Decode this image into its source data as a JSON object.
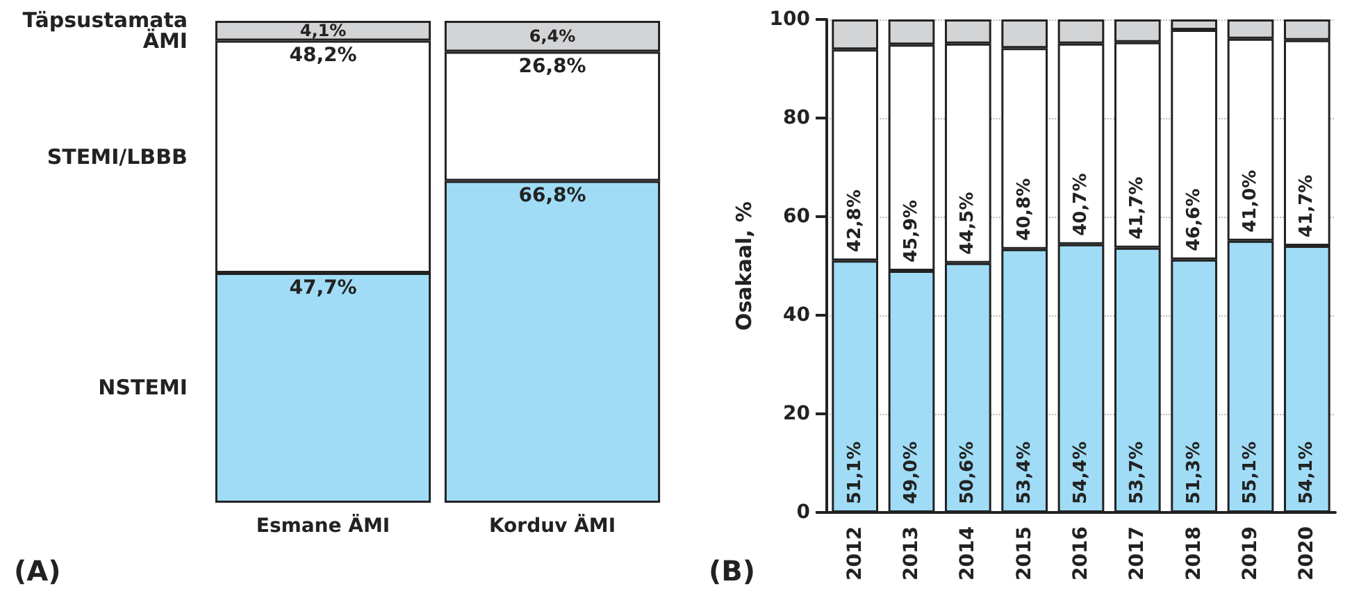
{
  "chart_data": [
    {
      "type": "bar",
      "stacked": true,
      "categories": [
        "Esmane ÄMI",
        "Korduv ÄMI"
      ],
      "annotations": [
        "(A)"
      ],
      "series": [
        {
          "name": "NSTEMI",
          "color": "#a0dcf6",
          "values": [
            47.7,
            66.8
          ],
          "value_labels": [
            "47,7%",
            "66,8%"
          ]
        },
        {
          "name": "STEMI/LBBB",
          "color": "#ffffff",
          "values": [
            48.2,
            26.8
          ],
          "value_labels": [
            "48,2%",
            "26,8%"
          ]
        },
        {
          "name": "Täpsustamata ÄMI",
          "color": "#d3d4d6",
          "values": [
            4.1,
            6.4
          ],
          "value_labels": [
            "4,1%",
            "6,4%"
          ]
        }
      ]
    },
    {
      "type": "bar",
      "stacked": true,
      "categories": [
        "2012",
        "2013",
        "2014",
        "2015",
        "2016",
        "2017",
        "2018",
        "2019",
        "2020"
      ],
      "ylabel": "Osakaal, %",
      "ylim": [
        0,
        100
      ],
      "yticks": [
        0,
        20,
        40,
        60,
        80,
        100
      ],
      "grid": "y",
      "annotations": [
        "(B)"
      ],
      "series": [
        {
          "color": "#a0dcf6",
          "values": [
            51.1,
            49.0,
            50.6,
            53.4,
            54.4,
            53.7,
            51.3,
            55.1,
            54.1
          ],
          "value_labels": [
            "51,1%",
            "49,0%",
            "50,6%",
            "53,4%",
            "54,4%",
            "53,7%",
            "51,3%",
            "55,1%",
            "54,1%"
          ]
        },
        {
          "color": "#ffffff",
          "values": [
            42.8,
            45.9,
            44.5,
            40.8,
            40.7,
            41.7,
            46.6,
            41.0,
            41.7
          ],
          "value_labels": [
            "42,8%",
            "45,9%",
            "44,5%",
            "40,8%",
            "40,7%",
            "41,7%",
            "46,6%",
            "41,0%",
            "41,7%"
          ]
        },
        {
          "color": "#d3d4d6",
          "values": [
            6.1,
            5.1,
            4.9,
            5.8,
            4.9,
            4.6,
            2.1,
            3.9,
            4.2
          ]
        }
      ]
    }
  ]
}
